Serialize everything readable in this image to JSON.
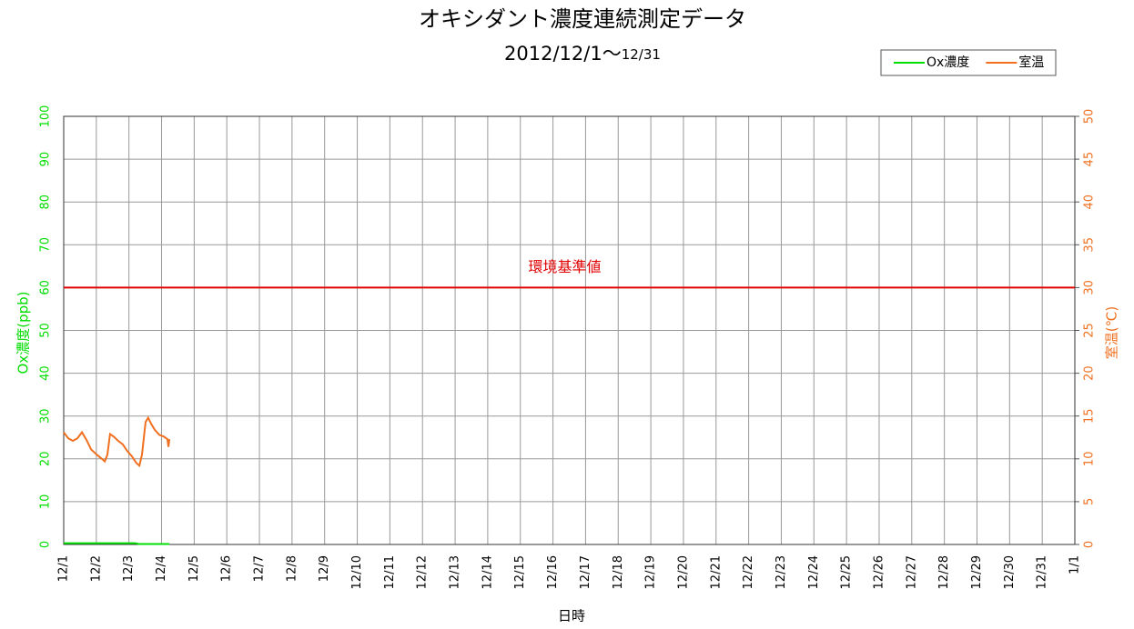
{
  "chart_data": {
    "type": "line",
    "title": "オキシダント濃度連続測定データ",
    "subtitle": [
      "2012/12/1～",
      "12/31"
    ],
    "xlabel": "日時",
    "ylabel": "Ox濃度(ppb)",
    "y2label": "室温(℃)",
    "xlim": [
      0,
      31
    ],
    "xticks": [
      {
        "value": 0,
        "label": "12/1"
      },
      {
        "value": 1,
        "label": "12/2"
      },
      {
        "value": 2,
        "label": "12/3"
      },
      {
        "value": 3,
        "label": "12/4"
      },
      {
        "value": 4,
        "label": "12/5"
      },
      {
        "value": 5,
        "label": "12/6"
      },
      {
        "value": 6,
        "label": "12/7"
      },
      {
        "value": 7,
        "label": "12/8"
      },
      {
        "value": 8,
        "label": "12/9"
      },
      {
        "value": 9,
        "label": "12/10"
      },
      {
        "value": 10,
        "label": "12/11"
      },
      {
        "value": 11,
        "label": "12/12"
      },
      {
        "value": 12,
        "label": "12/13"
      },
      {
        "value": 13,
        "label": "12/14"
      },
      {
        "value": 14,
        "label": "12/15"
      },
      {
        "value": 15,
        "label": "12/16"
      },
      {
        "value": 16,
        "label": "12/17"
      },
      {
        "value": 17,
        "label": "12/18"
      },
      {
        "value": 18,
        "label": "12/19"
      },
      {
        "value": 19,
        "label": "12/20"
      },
      {
        "value": 20,
        "label": "12/21"
      },
      {
        "value": 21,
        "label": "12/22"
      },
      {
        "value": 22,
        "label": "12/23"
      },
      {
        "value": 23,
        "label": "12/24"
      },
      {
        "value": 24,
        "label": "12/25"
      },
      {
        "value": 25,
        "label": "12/26"
      },
      {
        "value": 26,
        "label": "12/27"
      },
      {
        "value": 27,
        "label": "12/28"
      },
      {
        "value": 28,
        "label": "12/29"
      },
      {
        "value": 29,
        "label": "12/30"
      },
      {
        "value": 30,
        "label": "12/31"
      },
      {
        "value": 31,
        "label": "1/1"
      }
    ],
    "ylim": [
      0,
      100
    ],
    "yticks": [
      0,
      10,
      20,
      30,
      40,
      50,
      60,
      70,
      80,
      90,
      100
    ],
    "y2lim": [
      0,
      50
    ],
    "y2ticks": [
      0,
      5,
      10,
      15,
      20,
      25,
      30,
      35,
      40,
      45,
      50
    ],
    "grid": true,
    "legend": "top-right",
    "reference_line": {
      "value": 60,
      "label": "環境基準値",
      "color": "#e00000"
    },
    "series": [
      {
        "name": "Ox濃度",
        "color": "#00dd00",
        "x": [
          0,
          1,
          2,
          2.2,
          2.3,
          3,
          3.24
        ],
        "values": [
          0.3,
          0.3,
          0.3,
          0.3,
          0.1,
          0.1,
          0.1
        ]
      },
      {
        "name": "室温",
        "color": "#f07020",
        "axis": "y2",
        "x": [
          0,
          0.14,
          0.28,
          0.42,
          0.56,
          0.7,
          0.84,
          0.98,
          1.17,
          1.26,
          1.34,
          1.42,
          1.53,
          1.67,
          1.81,
          1.95,
          2.09,
          2.23,
          2.32,
          2.4,
          2.51,
          2.59,
          2.68,
          2.79,
          2.93,
          3.07,
          3.18,
          3.21,
          3.24
        ],
        "values": [
          13.1,
          12.4,
          12.1,
          12.4,
          13.1,
          12.2,
          11.1,
          10.6,
          10.0,
          9.7,
          10.5,
          12.9,
          12.6,
          12.1,
          11.7,
          10.9,
          10.3,
          9.5,
          9.2,
          10.5,
          14.3,
          14.8,
          14.1,
          13.4,
          12.8,
          12.6,
          12.3,
          11.4,
          12.3
        ]
      }
    ]
  }
}
